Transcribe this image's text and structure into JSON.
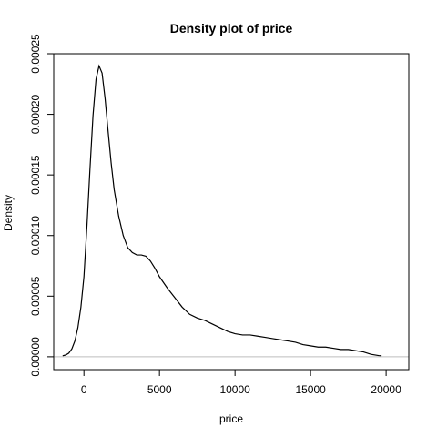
{
  "chart_data": {
    "type": "line",
    "title": "Density plot of  price",
    "xlabel": "price",
    "ylabel": "Density",
    "xlim": [
      -2000,
      21500
    ],
    "ylim": [
      -1.06e-05,
      0.00025
    ],
    "x_ticks": [
      0,
      5000,
      10000,
      15000,
      20000
    ],
    "y_ticks": [
      0.0,
      5e-05,
      0.0001,
      0.00015,
      0.0002,
      0.00025
    ],
    "x_tick_labels": [
      "0",
      "5000",
      "10000",
      "15000",
      "20000"
    ],
    "y_tick_labels": [
      "0.00000",
      "0.00005",
      "0.00010",
      "0.00015",
      "0.00020",
      "0.00025"
    ],
    "baseline": 0,
    "grid": false,
    "colors": {
      "line": "#000000",
      "baseline": "#bebebe",
      "frame": "#000000"
    },
    "series": [
      {
        "x": [
          -1410,
          -1200,
          -1000,
          -800,
          -600,
          -400,
          -200,
          0,
          200,
          400,
          600,
          800,
          1000,
          1200,
          1400,
          1600,
          1800,
          2000,
          2300,
          2600,
          2900,
          3200,
          3500,
          3800,
          4100,
          4400,
          4700,
          5000,
          5500,
          6000,
          6500,
          7000,
          7500,
          8000,
          8500,
          9000,
          9500,
          10000,
          10500,
          11000,
          11500,
          12000,
          12500,
          13000,
          13500,
          14000,
          14500,
          15000,
          15500,
          16000,
          16500,
          17000,
          17500,
          18000,
          18500,
          19000,
          19500,
          19700
        ],
        "y": [
          8e-07,
          1.5e-06,
          3e-06,
          6.5e-06,
          1.3e-05,
          2.4e-05,
          4.1e-05,
          6.6e-05,
          0.000108,
          0.000155,
          0.000199,
          0.000229,
          0.00024,
          0.000234,
          0.000213,
          0.000186,
          0.00016,
          0.000138,
          0.000116,
          0.0001,
          9e-05,
          8.6e-05,
          8.4e-05,
          8.4e-05,
          8.3e-05,
          7.9e-05,
          7.3e-05,
          6.6e-05,
          5.7e-05,
          4.9e-05,
          4.1e-05,
          3.5e-05,
          3.2e-05,
          3e-05,
          2.7e-05,
          2.4e-05,
          2.1e-05,
          1.9e-05,
          1.8e-05,
          1.8e-05,
          1.7e-05,
          1.6e-05,
          1.5e-05,
          1.4e-05,
          1.3e-05,
          1.2e-05,
          1e-05,
          9e-06,
          8e-06,
          8e-06,
          7e-06,
          6e-06,
          6e-06,
          5e-06,
          4e-06,
          2e-06,
          1e-06,
          8e-07
        ]
      }
    ]
  }
}
